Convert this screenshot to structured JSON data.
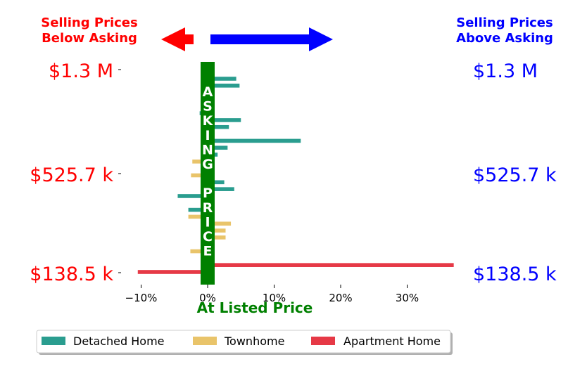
{
  "headers": {
    "left": [
      "Selling Prices",
      "Below Asking"
    ],
    "right": [
      "Selling Prices",
      "Above Asking"
    ],
    "left_color": "#ff0000",
    "right_color": "#0000ff"
  },
  "asking_label": "ASKING PRICE",
  "at_listed_label": "At Listed Price",
  "colors": {
    "Detached Home": "#2a9d8f",
    "Townhome": "#e9c46a",
    "Apartment Home": "#e63946",
    "asking_bar": "#008000"
  },
  "chart_data": {
    "type": "bar",
    "orientation": "horizontal",
    "xlim": [
      -13,
      38
    ],
    "xticks": [
      -10,
      0,
      10,
      20,
      30
    ],
    "xtick_labels": [
      "−10%",
      "0%",
      "10%",
      "20%",
      "30%"
    ],
    "y_price_labels": [
      "$1.3 M",
      "$525.7 k",
      "$138.5 k"
    ],
    "legend": [
      "Detached Home",
      "Townhome",
      "Apartment Home"
    ],
    "legend_position": "bottom",
    "grid": false,
    "bars": [
      {
        "type": "Detached Home",
        "pct": 4.3
      },
      {
        "type": "Detached Home",
        "pct": 4.8
      },
      {
        "type": "Detached Home",
        "pct": 1.0
      },
      {
        "type": "Detached Home",
        "pct": 1.0
      },
      {
        "type": "Detached Home",
        "pct": 1.0
      },
      {
        "type": "Detached Home",
        "pct": -1.2
      },
      {
        "type": "Detached Home",
        "pct": 5.0
      },
      {
        "type": "Detached Home",
        "pct": 3.2
      },
      {
        "type": "Detached Home",
        "pct": 1.0
      },
      {
        "type": "Detached Home",
        "pct": 14.0
      },
      {
        "type": "Detached Home",
        "pct": 3.0
      },
      {
        "type": "Detached Home",
        "pct": 1.5
      },
      {
        "type": "Townhome",
        "pct": -2.3
      },
      {
        "type": "Detached Home",
        "pct": 1.0
      },
      {
        "type": "Townhome",
        "pct": -2.5
      },
      {
        "type": "Detached Home",
        "pct": 2.5
      },
      {
        "type": "Detached Home",
        "pct": 4.0
      },
      {
        "type": "Detached Home",
        "pct": -4.5
      },
      {
        "type": "Detached Home",
        "pct": 1.0
      },
      {
        "type": "Detached Home",
        "pct": -2.9
      },
      {
        "type": "Townhome",
        "pct": -2.9
      },
      {
        "type": "Townhome",
        "pct": 3.5
      },
      {
        "type": "Townhome",
        "pct": 2.7
      },
      {
        "type": "Townhome",
        "pct": 2.7
      },
      {
        "type": "Townhome",
        "pct": 1.0
      },
      {
        "type": "Townhome",
        "pct": -2.6
      },
      {
        "type": "Detached Home",
        "pct": 1.0
      },
      {
        "type": "Apartment Home",
        "pct": 37.0
      },
      {
        "type": "Apartment Home",
        "pct": -10.5
      }
    ]
  }
}
